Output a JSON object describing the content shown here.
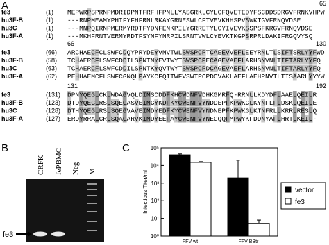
{
  "panel_labels": [
    "A",
    "B",
    "C"
  ],
  "alignment": {
    "blocks": [
      {
        "end": "65",
        "rows": [
          {
            "name": "fe3",
            "pos": "(1)",
            "seq": "MEPWRPSPRNPMDRIDPNTFRFHFPNLLYASGRKLCYLCFQVETEDYFSCDDSDRGVFRNKVHPW"
          },
          {
            "name": "hu3F-B",
            "pos": "(1)",
            "seq": "---RNPMEAMYPHIFYFHFRNLRKAYGRNESWLCFTVEVKHHSPVSWKTGVFRNQVDSE"
          },
          {
            "name": "hu3C",
            "pos": "(1)",
            "seq": "---MNPQIRNPMERMYRDTFYDNFENKPILYGRRETYLCYIVEVKSSPSFKRGVFRNQVDSE"
          },
          {
            "name": "hu3F-A",
            "pos": "(1)",
            "seq": "---MKHFRNTVERMYRDTFSYNFYNRPILSRNTVWLCYEVKTKGPSRPRLDAKIFRGQVYSQ"
          }
        ]
      },
      {
        "start": "66",
        "end": "130",
        "rows": [
          {
            "name": "fe3",
            "pos": "(66)",
            "seq": "ARCHAECFCLSWFCDQYPRYDEYVNVTWLSWSPCPTCAEEVVEFLEEYRNLTLSIFTSRLYYFWD"
          },
          {
            "name": "hu3F-B",
            "pos": "(58)",
            "seq": "TCHAERCFLSWFCDDILSPNTNYEVTWYTSWSPCPECAGEVAEFLARHSNVNLTIFTARLYYFQ"
          },
          {
            "name": "hu3C",
            "pos": "(63)",
            "seq": "TCHAERCFLSWFCDDILSPNTKYQVTWYTSWSPCPDCAGEVAEFLARHSNVNLTIFTARLYYFQ"
          },
          {
            "name": "hu3F-A",
            "pos": "(62)",
            "seq": "PEHHAEMCFLSWFCGNQLPAYKCFQITWFVSWTPCPDCVAKLAEFLAEHPNVTLTISAARLYYYW"
          }
        ]
      },
      {
        "start": "131",
        "end": "192",
        "rows": [
          {
            "name": "fe3",
            "pos": "(131)",
            "seq": "DPNYQEGLCKLWDAGVQLDIMSCDDFKHCWDNFVDHKGMRFQ-RRNLLKDYDFLAAELQEILR"
          },
          {
            "name": "hu3F-B",
            "pos": "(123)",
            "seq": "DTDYQEGLRSLSQEGASVEIMGYKDFKYCWENFVYNDDEPFKPWKGLKYNFLFLDSKLQEILE"
          },
          {
            "name": "hu3C",
            "pos": "(128)",
            "seq": "DTHYQEGLRSLSQEGVAVEIMDYEDFKYCWENFVYNDNEPFKPWKGLKTNFRLLKRRLRESLQ"
          },
          {
            "name": "hu3F-A",
            "pos": "(127)",
            "seq": "ERDYRRALCRLSQAGARVKIMDYEEFAYCWENFVYNEGQQFMPWYKFDDNYAFLHRTLKEIL-"
          }
        ]
      }
    ]
  },
  "gel": {
    "lanes": [
      "CRFK",
      "fePBMC",
      "Neg",
      "M"
    ],
    "band_label": "fe3"
  },
  "chart_data": {
    "type": "bar",
    "ylabel": "Infectious Titer/ml",
    "yscale": "log",
    "categories": [
      "FFV wt",
      "FFV BBtr"
    ],
    "series": [
      {
        "name": "vector",
        "color": "#000000",
        "values": [
          40000,
          2000
        ],
        "errors": [
          5000,
          18000
        ]
      },
      {
        "name": "fe3",
        "color": "#ffffff",
        "values": [
          15000,
          5
        ],
        "errors": [
          1500,
          3
        ]
      }
    ],
    "ylim": [
      1,
      100000
    ],
    "yticks": [
      {
        "value": 1,
        "label": "10⁰"
      },
      {
        "value": 10,
        "label": "10¹"
      },
      {
        "value": 100,
        "label": "10²"
      },
      {
        "value": 1000,
        "label": "10³"
      },
      {
        "value": 10000,
        "label": "10⁴"
      },
      {
        "value": 100000,
        "label": "10⁵"
      }
    ],
    "legend": "right"
  }
}
